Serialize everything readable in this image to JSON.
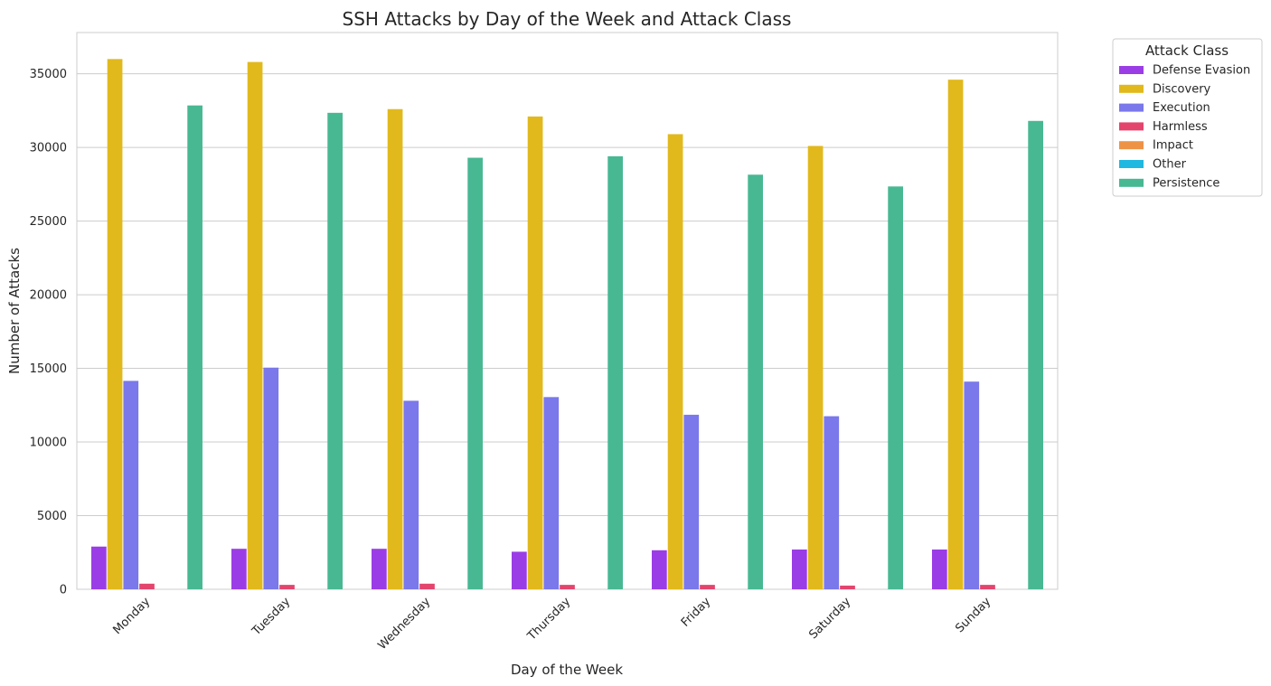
{
  "chart_data": {
    "type": "bar",
    "title": "SSH Attacks by Day of the Week and Attack Class",
    "xlabel": "Day of the Week",
    "ylabel": "Number of Attacks",
    "ylim": [
      0,
      37800
    ],
    "yticks": [
      0,
      5000,
      10000,
      15000,
      20000,
      25000,
      30000,
      35000
    ],
    "grid": "horizontal",
    "legend_placement": "outside-top-right",
    "legend_title": "Attack Class",
    "categories": [
      "Monday",
      "Tuesday",
      "Wednesday",
      "Thursday",
      "Friday",
      "Saturday",
      "Sunday"
    ],
    "series": [
      {
        "name": "Defense Evasion",
        "color": "#9b3de6",
        "values": [
          2900,
          2750,
          2750,
          2550,
          2650,
          2700,
          2700
        ]
      },
      {
        "name": "Discovery",
        "color": "#e1b91c",
        "values": [
          36000,
          35800,
          32600,
          32100,
          30900,
          30100,
          34600
        ]
      },
      {
        "name": "Execution",
        "color": "#7a78ea",
        "values": [
          14150,
          15050,
          12800,
          13050,
          11850,
          11750,
          14100
        ]
      },
      {
        "name": "Harmless",
        "color": "#e3456d",
        "values": [
          380,
          300,
          380,
          300,
          300,
          250,
          300
        ]
      },
      {
        "name": "Impact",
        "color": "#ee9346",
        "values": [
          0,
          0,
          0,
          0,
          0,
          0,
          0
        ]
      },
      {
        "name": "Other",
        "color": "#1fb8e0",
        "values": [
          0,
          0,
          0,
          0,
          0,
          0,
          0
        ]
      },
      {
        "name": "Persistence",
        "color": "#48b893",
        "values": [
          32850,
          32350,
          29300,
          29400,
          28150,
          27350,
          31800
        ]
      }
    ]
  }
}
